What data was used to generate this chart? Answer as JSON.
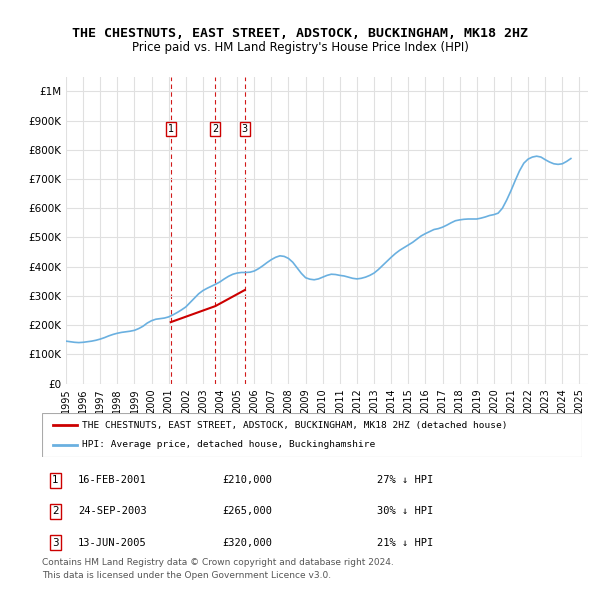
{
  "title": "THE CHESTNUTS, EAST STREET, ADSTOCK, BUCKINGHAM, MK18 2HZ",
  "subtitle": "Price paid vs. HM Land Registry's House Price Index (HPI)",
  "hpi_label": "HPI: Average price, detached house, Buckinghamshire",
  "property_label": "THE CHESTNUTS, EAST STREET, ADSTOCK, BUCKINGHAM, MK18 2HZ (detached house)",
  "hpi_color": "#6ab0e0",
  "property_color": "#cc0000",
  "vline_color": "#cc0000",
  "background_color": "#ffffff",
  "grid_color": "#e0e0e0",
  "ylim": [
    0,
    1050000
  ],
  "xlim_start": 1995.0,
  "xlim_end": 2025.5,
  "sales": [
    {
      "num": 1,
      "date_label": "16-FEB-2001",
      "price": 210000,
      "pct": "27%",
      "x": 2001.12
    },
    {
      "num": 2,
      "date_label": "24-SEP-2003",
      "price": 265000,
      "pct": "30%",
      "x": 2003.73
    },
    {
      "num": 3,
      "date_label": "13-JUN-2005",
      "price": 320000,
      "pct": "21%",
      "x": 2005.45
    }
  ],
  "footer_line1": "Contains HM Land Registry data © Crown copyright and database right 2024.",
  "footer_line2": "This data is licensed under the Open Government Licence v3.0.",
  "yticks": [
    0,
    100000,
    200000,
    300000,
    400000,
    500000,
    600000,
    700000,
    800000,
    900000,
    1000000
  ],
  "ytick_labels": [
    "£0",
    "£100K",
    "£200K",
    "£300K",
    "£400K",
    "£500K",
    "£600K",
    "£700K",
    "£800K",
    "£900K",
    "£1M"
  ],
  "hpi_data": {
    "years": [
      1995.0,
      1995.25,
      1995.5,
      1995.75,
      1996.0,
      1996.25,
      1996.5,
      1996.75,
      1997.0,
      1997.25,
      1997.5,
      1997.75,
      1998.0,
      1998.25,
      1998.5,
      1998.75,
      1999.0,
      1999.25,
      1999.5,
      1999.75,
      2000.0,
      2000.25,
      2000.5,
      2000.75,
      2001.0,
      2001.25,
      2001.5,
      2001.75,
      2002.0,
      2002.25,
      2002.5,
      2002.75,
      2003.0,
      2003.25,
      2003.5,
      2003.75,
      2004.0,
      2004.25,
      2004.5,
      2004.75,
      2005.0,
      2005.25,
      2005.5,
      2005.75,
      2006.0,
      2006.25,
      2006.5,
      2006.75,
      2007.0,
      2007.25,
      2007.5,
      2007.75,
      2008.0,
      2008.25,
      2008.5,
      2008.75,
      2009.0,
      2009.25,
      2009.5,
      2009.75,
      2010.0,
      2010.25,
      2010.5,
      2010.75,
      2011.0,
      2011.25,
      2011.5,
      2011.75,
      2012.0,
      2012.25,
      2012.5,
      2012.75,
      2013.0,
      2013.25,
      2013.5,
      2013.75,
      2014.0,
      2014.25,
      2014.5,
      2014.75,
      2015.0,
      2015.25,
      2015.5,
      2015.75,
      2016.0,
      2016.25,
      2016.5,
      2016.75,
      2017.0,
      2017.25,
      2017.5,
      2017.75,
      2018.0,
      2018.25,
      2018.5,
      2018.75,
      2019.0,
      2019.25,
      2019.5,
      2019.75,
      2020.0,
      2020.25,
      2020.5,
      2020.75,
      2021.0,
      2021.25,
      2021.5,
      2021.75,
      2022.0,
      2022.25,
      2022.5,
      2022.75,
      2023.0,
      2023.25,
      2023.5,
      2023.75,
      2024.0,
      2024.25,
      2024.5
    ],
    "values": [
      145000,
      143000,
      141000,
      140000,
      141000,
      143000,
      145000,
      148000,
      152000,
      157000,
      163000,
      168000,
      172000,
      175000,
      177000,
      179000,
      182000,
      188000,
      196000,
      207000,
      215000,
      220000,
      222000,
      224000,
      228000,
      235000,
      243000,
      252000,
      262000,
      277000,
      292000,
      307000,
      318000,
      326000,
      333000,
      340000,
      348000,
      358000,
      367000,
      374000,
      378000,
      380000,
      380000,
      381000,
      385000,
      393000,
      403000,
      414000,
      424000,
      432000,
      437000,
      435000,
      428000,
      415000,
      396000,
      377000,
      362000,
      357000,
      355000,
      358000,
      364000,
      370000,
      374000,
      373000,
      370000,
      368000,
      364000,
      360000,
      358000,
      360000,
      364000,
      370000,
      378000,
      390000,
      404000,
      418000,
      432000,
      445000,
      456000,
      465000,
      474000,
      483000,
      494000,
      505000,
      513000,
      520000,
      527000,
      530000,
      535000,
      542000,
      550000,
      557000,
      560000,
      562000,
      563000,
      563000,
      563000,
      566000,
      570000,
      575000,
      578000,
      583000,
      600000,
      628000,
      660000,
      695000,
      728000,
      754000,
      768000,
      775000,
      778000,
      775000,
      766000,
      758000,
      752000,
      750000,
      752000,
      760000,
      770000
    ]
  },
  "property_data": {
    "years": [
      2001.12,
      2003.73,
      2005.45
    ],
    "values": [
      210000,
      265000,
      320000
    ]
  }
}
